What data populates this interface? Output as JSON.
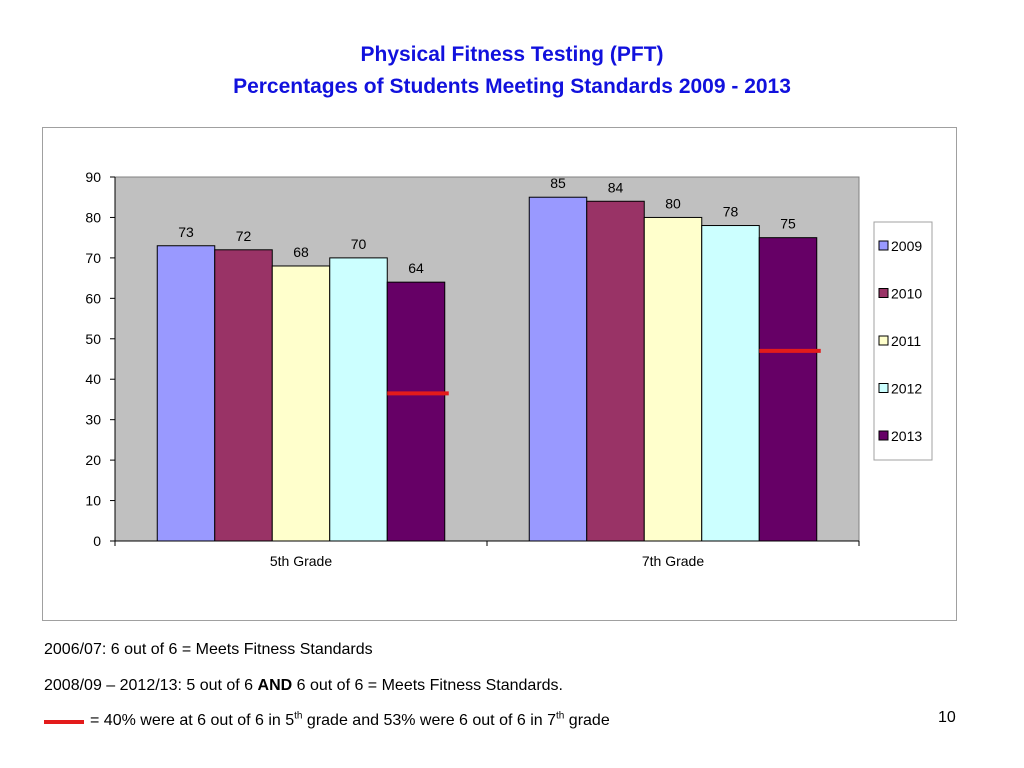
{
  "title_line1": "Physical Fitness Testing (PFT)",
  "title_line2": "Percentages of Students Meeting Standards 2009 - 2013",
  "chart_data": {
    "type": "bar",
    "categories": [
      "5th Grade",
      "7th Grade"
    ],
    "series": [
      {
        "name": "2009",
        "values": [
          73,
          85
        ],
        "color": "#9999ff"
      },
      {
        "name": "2010",
        "values": [
          72,
          84
        ],
        "color": "#993366"
      },
      {
        "name": "2011",
        "values": [
          68,
          80
        ],
        "color": "#ffffcc"
      },
      {
        "name": "2012",
        "values": [
          70,
          78
        ],
        "color": "#ccffff"
      },
      {
        "name": "2013",
        "values": [
          64,
          75
        ],
        "color": "#660066"
      }
    ],
    "markers": [
      {
        "category": "5th Grade",
        "value": 36.5,
        "color": "#e31b1b"
      },
      {
        "category": "7th Grade",
        "value": 47,
        "color": "#e31b1b"
      }
    ],
    "ylim": [
      0,
      90
    ],
    "yticks": [
      0,
      10,
      20,
      30,
      40,
      50,
      60,
      70,
      80,
      90
    ],
    "grid": false,
    "plot_background": "#c0c0c0",
    "legend_position": "right",
    "title": "",
    "xlabel": "",
    "ylabel": ""
  },
  "notes": {
    "line1": "2006/07:  6 out of 6 = Meets Fitness Standards",
    "line2_pre": "2008/09 – 2012/13:  5 out of 6 ",
    "line2_bold": "AND",
    "line2_post": " 6 out of 6 = Meets Fitness Standards.",
    "line3_a": "= 40% were at 6 out of 6 in 5",
    "line3_sup1": "th",
    "line3_b": " grade and 53% were 6 out of 6 in 7",
    "line3_sup2": "th",
    "line3_c": " grade"
  },
  "page_number": "10"
}
